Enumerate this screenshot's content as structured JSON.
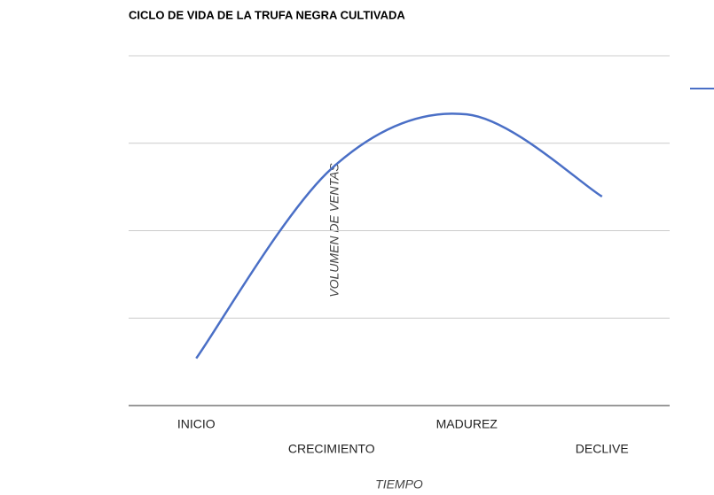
{
  "chart_data": {
    "type": "line",
    "title": "CICLO DE VIDA DE LA TRUFA NEGRA CULTIVADA",
    "x_label": "TIEMPO",
    "y_label": "VOLUMEN DE VENTAS",
    "categories": [
      "INICIO",
      "CRECIMIENTO",
      "MADUREZ",
      "DECLIVE"
    ],
    "series": [
      {
        "color": "#4a6fc6",
        "values": [
          0.54,
          2.71,
          3.33,
          2.39
        ]
      }
    ],
    "ylim": [
      0,
      4
    ],
    "yticks": [
      0,
      1,
      2,
      3,
      4
    ],
    "grid": true
  }
}
